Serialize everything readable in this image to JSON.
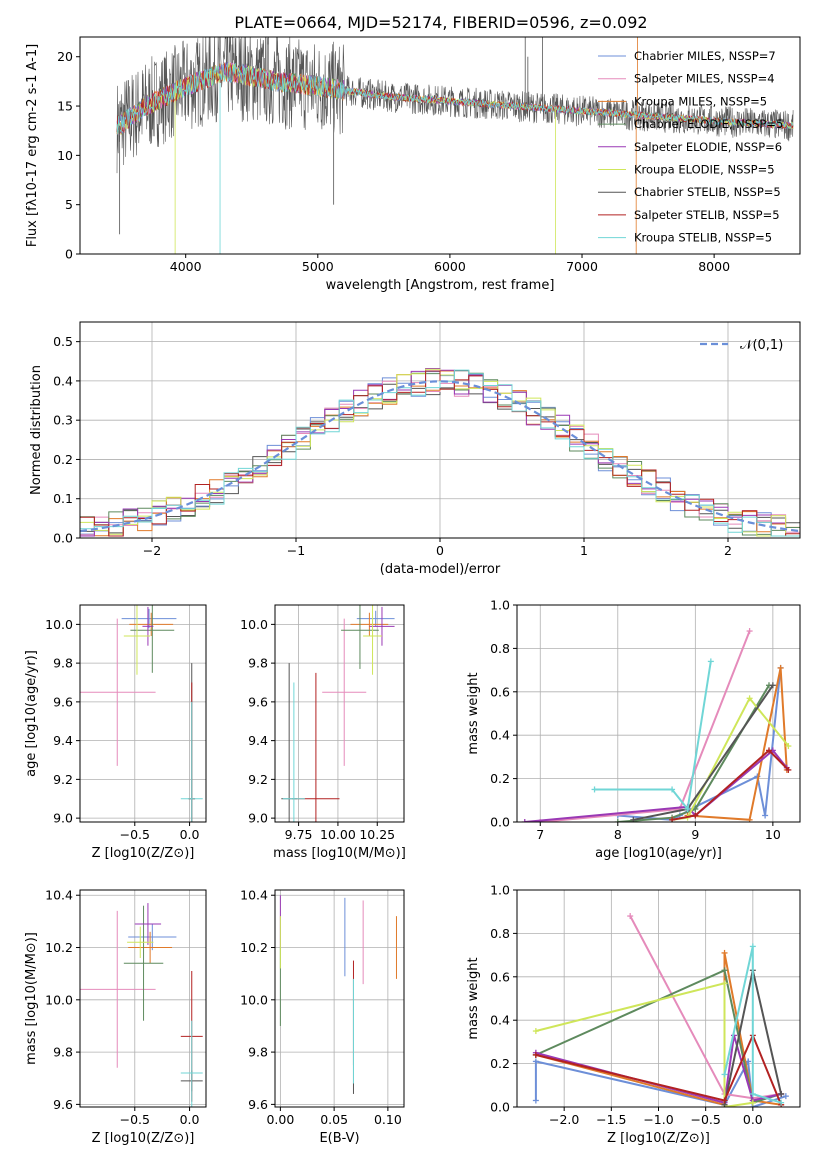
{
  "title": "PLATE=0664, MJD=52174, FIBERID=0596, z=0.092",
  "colors": [
    "#6d8fd8",
    "#e58bbb",
    "#e07a2a",
    "#5e8a5e",
    "#9a39b5",
    "#cfe65a",
    "#555555",
    "#b22222",
    "#70d6d6"
  ],
  "legend_entries": [
    "Chabrier MILES, N$_{SSP}$=7",
    "Salpeter MILES, N$_{SSP}$=4",
    "Kroupa MILES, N$_{SSP}$=5",
    "Chabrier ELODIE, N$_{SSP}$=5",
    "Salpeter ELODIE, N$_{SSP}$=6",
    "Kroupa ELODIE, N$_{SSP}$=5",
    "Chabrier STELIB, N$_{SSP}$=5",
    "Salpeter STELIB, N$_{SSP}$=5",
    "Kroupa STELIB, N$_{SSP}$=5"
  ],
  "chart_data": [
    {
      "id": "spectrum",
      "type": "line",
      "xlabel": "wavelength [Angstrom, rest frame]",
      "ylabel": "Flux [f$_\\lambda$10$^{-17}$ erg cm$^{-2}$ s$^{-1}$ A$^{-1}$]",
      "xlim": [
        3200,
        8650
      ],
      "ylim": [
        0,
        22
      ],
      "xticks": [
        4000,
        5000,
        6000,
        7000,
        8000
      ],
      "yticks": [
        0,
        5,
        10,
        15,
        20
      ],
      "grid": false,
      "legend": "upper right",
      "data_shape": [
        [
          3500,
          13.0
        ],
        [
          3700,
          15.0
        ],
        [
          4000,
          17.0
        ],
        [
          4300,
          18.5
        ],
        [
          4700,
          17.5
        ],
        [
          5000,
          17.0
        ],
        [
          5500,
          16.0
        ],
        [
          6000,
          15.5
        ],
        [
          6500,
          15.0
        ],
        [
          7000,
          14.5
        ],
        [
          7500,
          14.0
        ],
        [
          8000,
          13.5
        ],
        [
          8600,
          13.0
        ]
      ],
      "data_wavelength_range": [
        3480,
        8600
      ]
    },
    {
      "id": "residuals",
      "type": "line",
      "xlabel": "(data-model)/error",
      "ylabel": "Normed distribution",
      "xlim": [
        -2.5,
        2.5
      ],
      "ylim": [
        0,
        0.55
      ],
      "xticks": [
        -2,
        -1,
        0,
        1,
        2
      ],
      "yticks": [
        0.0,
        0.1,
        0.2,
        0.3,
        0.4,
        0.5
      ],
      "grid": true,
      "legend": "upper right",
      "reference_label": "$\\mathcal{N}(0,1)$",
      "reference_curve": "gaussian mean 0 sigma 1"
    },
    {
      "id": "age-vs-Z",
      "type": "scatter",
      "xlabel": "Z [log$_{10}$(Z/Z$_\\odot$)]",
      "ylabel": "age  [log$_{10}$(age/yr)]",
      "xlim": [
        -1.0,
        0.15
      ],
      "ylim": [
        8.98,
        10.1
      ],
      "xticks": [
        -0.5,
        0.0
      ],
      "yticks": [
        9.0,
        9.2,
        9.4,
        9.6,
        9.8,
        10.0
      ],
      "grid": true,
      "points": [
        {
          "color": 0,
          "x": -0.37,
          "y": 10.03,
          "xerr": 0.25,
          "yerr": 0.05
        },
        {
          "color": 1,
          "x": -0.66,
          "y": 9.65,
          "xerr": 0.35,
          "yerr": 0.38
        },
        {
          "color": 2,
          "x": -0.35,
          "y": 10.0,
          "xerr": 0.2,
          "yerr": 0.06
        },
        {
          "color": 3,
          "x": -0.34,
          "y": 9.97,
          "xerr": 0.2,
          "yerr": 0.22
        },
        {
          "color": 4,
          "x": -0.38,
          "y": 9.99,
          "xerr": 0.05,
          "yerr": 0.1
        },
        {
          "color": 5,
          "x": -0.48,
          "y": 9.94,
          "xerr": 0.12,
          "yerr": 0.2
        },
        {
          "color": 6,
          "x": 0.02,
          "y": 9.1,
          "xerr": 0.03,
          "yerr": 0.7
        },
        {
          "color": 7,
          "x": 0.02,
          "y": 9.1,
          "xerr": 0.03,
          "yerr": 0.6
        },
        {
          "color": 8,
          "x": 0.02,
          "y": 9.1,
          "xerr": 0.1,
          "yerr": 0.5
        }
      ]
    },
    {
      "id": "age-vs-mass",
      "type": "scatter",
      "xlabel": "mass [log$_{10}$(M/M$_\\odot$)]",
      "ylabel": "",
      "xlim": [
        9.6,
        10.42
      ],
      "ylim": [
        8.98,
        10.1
      ],
      "xticks": [
        9.75,
        10.0,
        10.25
      ],
      "yticks": [
        9.0,
        9.2,
        9.4,
        9.6,
        9.8,
        10.0
      ],
      "grid": true,
      "points": [
        {
          "color": 0,
          "x": 10.24,
          "y": 10.03,
          "xerr": 0.12,
          "yerr": 0.04
        },
        {
          "color": 1,
          "x": 10.04,
          "y": 9.65,
          "xerr": 0.14,
          "yerr": 0.38
        },
        {
          "color": 2,
          "x": 10.2,
          "y": 10.0,
          "xerr": 0.12,
          "yerr": 0.06
        },
        {
          "color": 3,
          "x": 10.14,
          "y": 9.97,
          "xerr": 0.12,
          "yerr": 0.2
        },
        {
          "color": 4,
          "x": 10.28,
          "y": 9.99,
          "xerr": 0.08,
          "yerr": 0.1
        },
        {
          "color": 5,
          "x": 10.22,
          "y": 9.94,
          "xerr": 0.06,
          "yerr": 0.2
        },
        {
          "color": 6,
          "x": 9.69,
          "y": 9.1,
          "xerr": 0.05,
          "yerr": 0.7
        },
        {
          "color": 7,
          "x": 9.86,
          "y": 9.1,
          "xerr": 0.15,
          "yerr": 0.65
        },
        {
          "color": 8,
          "x": 9.72,
          "y": 9.1,
          "xerr": 0.07,
          "yerr": 0.6
        }
      ]
    },
    {
      "id": "massweight-vs-age",
      "type": "line",
      "xlabel": "age  [log$_{10}$(age/yr)]",
      "ylabel": "mass weight",
      "xlim": [
        6.7,
        10.35
      ],
      "ylim": [
        0,
        1.0
      ],
      "xticks": [
        7,
        8,
        9,
        10
      ],
      "yticks": [
        0.0,
        0.2,
        0.4,
        0.6,
        0.8,
        1.0
      ],
      "grid": true,
      "series": [
        {
          "color": 0,
          "x": [
            8.0,
            8.7,
            8.8,
            9.0,
            9.8,
            9.9,
            10.1
          ],
          "y": [
            0.03,
            0.01,
            0.03,
            0.07,
            0.21,
            0.03,
            0.71
          ]
        },
        {
          "color": 1,
          "x": [
            7.0,
            8.8,
            9.7
          ],
          "y": [
            0.0,
            0.06,
            0.88
          ]
        },
        {
          "color": 2,
          "x": [
            8.9,
            9.7,
            10.1,
            10.18
          ],
          "y": [
            0.03,
            0.01,
            0.71,
            0.24
          ]
        },
        {
          "color": 3,
          "x": [
            8.0,
            8.7,
            9.0,
            9.95
          ],
          "y": [
            0.0,
            0.02,
            0.06,
            0.63
          ]
        },
        {
          "color": 4,
          "x": [
            6.8,
            8.9,
            9.0,
            10.0,
            10.18
          ],
          "y": [
            0.0,
            0.07,
            0.03,
            0.33,
            0.25
          ]
        },
        {
          "color": 5,
          "x": [
            8.7,
            8.9,
            9.7,
            10.2
          ],
          "y": [
            0.01,
            0.02,
            0.57,
            0.35
          ]
        },
        {
          "color": 6,
          "x": [
            8.2,
            8.9,
            10.0
          ],
          "y": [
            0.01,
            0.06,
            0.63
          ]
        },
        {
          "color": 7,
          "x": [
            8.7,
            9.0,
            9.95,
            10.2
          ],
          "y": [
            0.01,
            0.03,
            0.33,
            0.24
          ]
        },
        {
          "color": 8,
          "x": [
            7.7,
            8.7,
            8.9,
            9.2
          ],
          "y": [
            0.15,
            0.15,
            0.06,
            0.74
          ]
        }
      ]
    },
    {
      "id": "mass-vs-Z",
      "type": "scatter",
      "xlabel": "Z [log$_{10}$(Z/Z$_\\odot$)]",
      "ylabel": "mass [log$_{10}$(M/M$_\\odot$)]",
      "xlim": [
        -1.0,
        0.15
      ],
      "ylim": [
        9.59,
        10.42
      ],
      "xticks": [
        -0.5,
        0.0
      ],
      "yticks": [
        9.6,
        9.8,
        10.0,
        10.2,
        10.4
      ],
      "grid": true,
      "points": [
        {
          "color": 0,
          "x": -0.34,
          "y": 10.24,
          "xerr": 0.22,
          "yerr": 0.05
        },
        {
          "color": 1,
          "x": -0.66,
          "y": 10.04,
          "xerr": 0.35,
          "yerr": 0.3
        },
        {
          "color": 2,
          "x": -0.36,
          "y": 10.2,
          "xerr": 0.2,
          "yerr": 0.06
        },
        {
          "color": 3,
          "x": -0.42,
          "y": 10.14,
          "xerr": 0.18,
          "yerr": 0.22
        },
        {
          "color": 4,
          "x": -0.38,
          "y": 10.29,
          "xerr": 0.12,
          "yerr": 0.08
        },
        {
          "color": 5,
          "x": -0.45,
          "y": 10.22,
          "xerr": 0.12,
          "yerr": 0.06
        },
        {
          "color": 6,
          "x": 0.02,
          "y": 9.69,
          "xerr": 0.1,
          "yerr": 0.04
        },
        {
          "color": 7,
          "x": 0.02,
          "y": 9.86,
          "xerr": 0.1,
          "yerr": 0.25
        },
        {
          "color": 8,
          "x": 0.02,
          "y": 9.72,
          "xerr": 0.1,
          "yerr": 0.2
        }
      ]
    },
    {
      "id": "mass-vs-EBV",
      "type": "scatter",
      "xlabel": "E(B-V)",
      "ylabel": "",
      "xlim": [
        -0.005,
        0.115
      ],
      "ylim": [
        9.59,
        10.42
      ],
      "xticks": [
        0.0,
        0.05,
        0.1
      ],
      "yticks": [
        9.6,
        9.8,
        10.0,
        10.2,
        10.4
      ],
      "grid": true,
      "points": [
        {
          "color": 0,
          "x": 0.06,
          "y": 10.24,
          "xerr": 0.0,
          "yerr": 0.15
        },
        {
          "color": 1,
          "x": 0.077,
          "y": 10.22,
          "xerr": 0.0,
          "yerr": 0.16
        },
        {
          "color": 2,
          "x": 0.108,
          "y": 10.2,
          "xerr": 0.0,
          "yerr": 0.12
        },
        {
          "color": 3,
          "x": 0.0,
          "y": 10.05,
          "xerr": 0.0,
          "yerr": 0.15
        },
        {
          "color": 4,
          "x": 0.0,
          "y": 10.3,
          "xerr": 0.0,
          "yerr": 0.1
        },
        {
          "color": 5,
          "x": 0.0,
          "y": 10.22,
          "xerr": 0.0,
          "yerr": 0.1
        },
        {
          "color": 6,
          "x": 0.068,
          "y": 9.86,
          "xerr": 0.0,
          "yerr": 0.22
        },
        {
          "color": 7,
          "x": 0.068,
          "y": 9.95,
          "xerr": 0.0,
          "yerr": 0.2
        },
        {
          "color": 8,
          "x": 0.068,
          "y": 9.88,
          "xerr": 0.0,
          "yerr": 0.2
        }
      ]
    },
    {
      "id": "massweight-vs-Z",
      "type": "line",
      "xlabel": "Z [log$_{10}$(Z/Z$_\\odot$)]",
      "ylabel": "mass weight",
      "xlim": [
        -2.5,
        0.5
      ],
      "ylim": [
        0,
        1.0
      ],
      "xticks": [
        -2.0,
        -1.5,
        -1.0,
        -0.5,
        0.0
      ],
      "yticks": [
        0.0,
        0.2,
        0.4,
        0.6,
        0.8,
        1.0
      ],
      "grid": true,
      "series": [
        {
          "color": 0,
          "x": [
            -2.3,
            -2.3,
            -0.3,
            -0.05,
            0.0,
            0.35
          ],
          "y": [
            0.03,
            0.21,
            0.01,
            0.21,
            0.0,
            0.05
          ]
        },
        {
          "color": 1,
          "x": [
            -1.3,
            -0.3,
            0.0,
            0.3
          ],
          "y": [
            0.88,
            0.06,
            0.04,
            0.06
          ]
        },
        {
          "color": 2,
          "x": [
            -2.3,
            -0.3,
            -0.3,
            0.0,
            0.3
          ],
          "y": [
            0.24,
            0.01,
            0.71,
            0.03,
            0.01
          ]
        },
        {
          "color": 3,
          "x": [
            -2.3,
            -0.3,
            0.0,
            0.3
          ],
          "y": [
            0.24,
            0.63,
            0.02,
            0.06
          ]
        },
        {
          "color": 4,
          "x": [
            -2.3,
            -0.3,
            -0.2,
            0.0,
            0.3
          ],
          "y": [
            0.25,
            0.02,
            0.33,
            0.03,
            0.06
          ]
        },
        {
          "color": 5,
          "x": [
            -2.3,
            -0.3,
            -0.3,
            0.0
          ],
          "y": [
            0.35,
            0.57,
            0.0,
            0.02
          ]
        },
        {
          "color": 6,
          "x": [
            -0.3,
            0.0,
            0.3
          ],
          "y": [
            0.01,
            0.63,
            0.06
          ]
        },
        {
          "color": 7,
          "x": [
            -2.3,
            -0.3,
            0.0,
            0.3
          ],
          "y": [
            0.24,
            0.03,
            0.33,
            0.01
          ]
        },
        {
          "color": 8,
          "x": [
            -0.3,
            0.0,
            0.0,
            0.3
          ],
          "y": [
            0.15,
            0.74,
            0.06,
            0.02
          ]
        }
      ]
    }
  ]
}
